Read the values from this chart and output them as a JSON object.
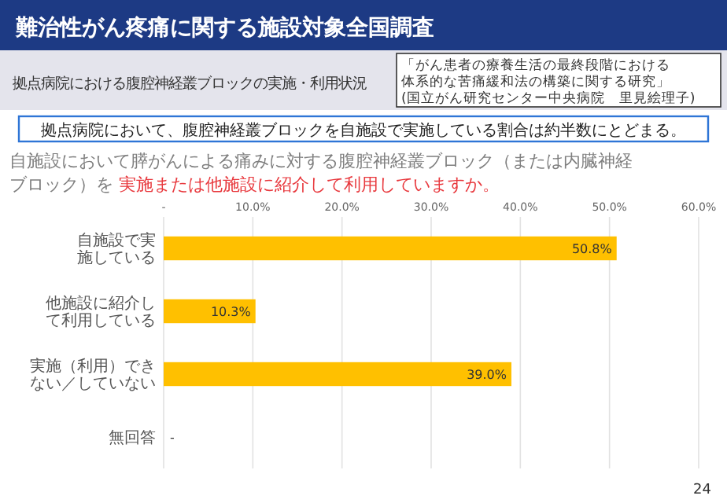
{
  "chart_data": {
    "type": "bar",
    "orientation": "horizontal",
    "title": "難治性がん疼痛に関する施設対象全国調査",
    "subtitle": "拠点病院における腹腔神経叢ブロックの実施・利用状況",
    "categories": [
      "自施設で実施している",
      "他施設に紹介して利用している",
      "実施（利用）できない／していない",
      "無回答"
    ],
    "values": [
      50.8,
      10.3,
      39.0,
      0
    ],
    "value_labels": [
      "50.8%",
      "10.3%",
      "39.0%",
      "-"
    ],
    "color": "#ffc000",
    "xlim": [
      0,
      60
    ],
    "xticks": [
      {
        "value": 0,
        "label": "-"
      },
      {
        "value": 10,
        "label": "10.0%"
      },
      {
        "value": 20,
        "label": "20.0%"
      },
      {
        "value": 30,
        "label": "30.0%"
      },
      {
        "value": 40,
        "label": "40.0%"
      },
      {
        "value": 50,
        "label": "50.0%"
      },
      {
        "value": 60,
        "label": "60.0%"
      }
    ],
    "grid": "x",
    "annotations": [
      "「がん患者の療養生活の最終段階における",
      "体系的な苦痛緩和法の構築に関する研究」",
      "(国立がん研究センター中央病院　里見絵理子)",
      "拠点病院において、腹腔神経叢ブロックを自施設で実施している割合は約半数にとどまる。",
      "自施設において膵がんによる痛みに対する腹腔神経叢ブロック（または内臓神経",
      "ブロック）を ",
      "実施または他施設に紹介して利用していますか。",
      "24"
    ]
  }
}
